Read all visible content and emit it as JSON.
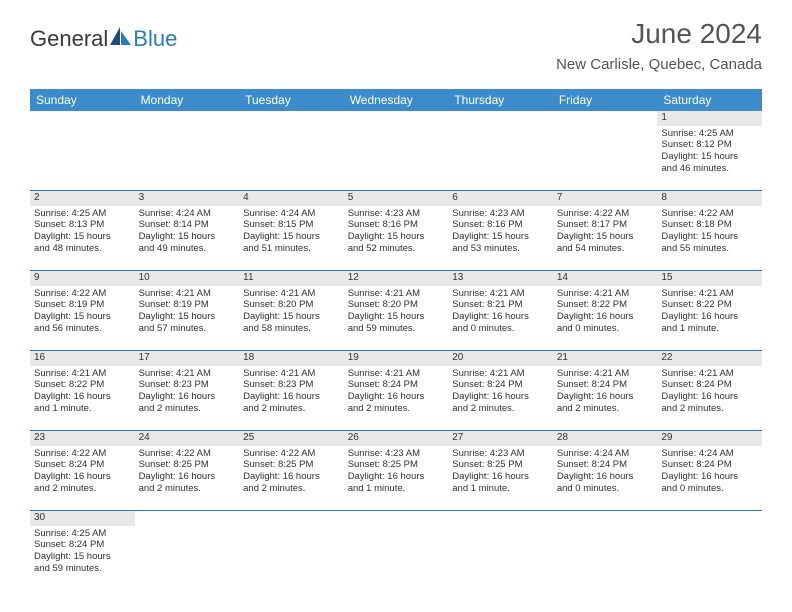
{
  "brand": {
    "part1": "General",
    "part2": "Blue"
  },
  "title": "June 2024",
  "location": "New Carlisle, Quebec, Canada",
  "colors": {
    "header_bg": "#3c8ccb",
    "header_text": "#ffffff",
    "daynum_bg": "#e8e8e8",
    "border": "#2b7bbf",
    "brand_blue": "#2b7bbf",
    "text": "#333333"
  },
  "weekdays": [
    "Sunday",
    "Monday",
    "Tuesday",
    "Wednesday",
    "Thursday",
    "Friday",
    "Saturday"
  ],
  "weeks": [
    [
      null,
      null,
      null,
      null,
      null,
      null,
      {
        "d": "1",
        "sr": "Sunrise: 4:25 AM",
        "ss": "Sunset: 8:12 PM",
        "dl1": "Daylight: 15 hours",
        "dl2": "and 46 minutes."
      }
    ],
    [
      {
        "d": "2",
        "sr": "Sunrise: 4:25 AM",
        "ss": "Sunset: 8:13 PM",
        "dl1": "Daylight: 15 hours",
        "dl2": "and 48 minutes."
      },
      {
        "d": "3",
        "sr": "Sunrise: 4:24 AM",
        "ss": "Sunset: 8:14 PM",
        "dl1": "Daylight: 15 hours",
        "dl2": "and 49 minutes."
      },
      {
        "d": "4",
        "sr": "Sunrise: 4:24 AM",
        "ss": "Sunset: 8:15 PM",
        "dl1": "Daylight: 15 hours",
        "dl2": "and 51 minutes."
      },
      {
        "d": "5",
        "sr": "Sunrise: 4:23 AM",
        "ss": "Sunset: 8:16 PM",
        "dl1": "Daylight: 15 hours",
        "dl2": "and 52 minutes."
      },
      {
        "d": "6",
        "sr": "Sunrise: 4:23 AM",
        "ss": "Sunset: 8:16 PM",
        "dl1": "Daylight: 15 hours",
        "dl2": "and 53 minutes."
      },
      {
        "d": "7",
        "sr": "Sunrise: 4:22 AM",
        "ss": "Sunset: 8:17 PM",
        "dl1": "Daylight: 15 hours",
        "dl2": "and 54 minutes."
      },
      {
        "d": "8",
        "sr": "Sunrise: 4:22 AM",
        "ss": "Sunset: 8:18 PM",
        "dl1": "Daylight: 15 hours",
        "dl2": "and 55 minutes."
      }
    ],
    [
      {
        "d": "9",
        "sr": "Sunrise: 4:22 AM",
        "ss": "Sunset: 8:19 PM",
        "dl1": "Daylight: 15 hours",
        "dl2": "and 56 minutes."
      },
      {
        "d": "10",
        "sr": "Sunrise: 4:21 AM",
        "ss": "Sunset: 8:19 PM",
        "dl1": "Daylight: 15 hours",
        "dl2": "and 57 minutes."
      },
      {
        "d": "11",
        "sr": "Sunrise: 4:21 AM",
        "ss": "Sunset: 8:20 PM",
        "dl1": "Daylight: 15 hours",
        "dl2": "and 58 minutes."
      },
      {
        "d": "12",
        "sr": "Sunrise: 4:21 AM",
        "ss": "Sunset: 8:20 PM",
        "dl1": "Daylight: 15 hours",
        "dl2": "and 59 minutes."
      },
      {
        "d": "13",
        "sr": "Sunrise: 4:21 AM",
        "ss": "Sunset: 8:21 PM",
        "dl1": "Daylight: 16 hours",
        "dl2": "and 0 minutes."
      },
      {
        "d": "14",
        "sr": "Sunrise: 4:21 AM",
        "ss": "Sunset: 8:22 PM",
        "dl1": "Daylight: 16 hours",
        "dl2": "and 0 minutes."
      },
      {
        "d": "15",
        "sr": "Sunrise: 4:21 AM",
        "ss": "Sunset: 8:22 PM",
        "dl1": "Daylight: 16 hours",
        "dl2": "and 1 minute."
      }
    ],
    [
      {
        "d": "16",
        "sr": "Sunrise: 4:21 AM",
        "ss": "Sunset: 8:22 PM",
        "dl1": "Daylight: 16 hours",
        "dl2": "and 1 minute."
      },
      {
        "d": "17",
        "sr": "Sunrise: 4:21 AM",
        "ss": "Sunset: 8:23 PM",
        "dl1": "Daylight: 16 hours",
        "dl2": "and 2 minutes."
      },
      {
        "d": "18",
        "sr": "Sunrise: 4:21 AM",
        "ss": "Sunset: 8:23 PM",
        "dl1": "Daylight: 16 hours",
        "dl2": "and 2 minutes."
      },
      {
        "d": "19",
        "sr": "Sunrise: 4:21 AM",
        "ss": "Sunset: 8:24 PM",
        "dl1": "Daylight: 16 hours",
        "dl2": "and 2 minutes."
      },
      {
        "d": "20",
        "sr": "Sunrise: 4:21 AM",
        "ss": "Sunset: 8:24 PM",
        "dl1": "Daylight: 16 hours",
        "dl2": "and 2 minutes."
      },
      {
        "d": "21",
        "sr": "Sunrise: 4:21 AM",
        "ss": "Sunset: 8:24 PM",
        "dl1": "Daylight: 16 hours",
        "dl2": "and 2 minutes."
      },
      {
        "d": "22",
        "sr": "Sunrise: 4:21 AM",
        "ss": "Sunset: 8:24 PM",
        "dl1": "Daylight: 16 hours",
        "dl2": "and 2 minutes."
      }
    ],
    [
      {
        "d": "23",
        "sr": "Sunrise: 4:22 AM",
        "ss": "Sunset: 8:24 PM",
        "dl1": "Daylight: 16 hours",
        "dl2": "and 2 minutes."
      },
      {
        "d": "24",
        "sr": "Sunrise: 4:22 AM",
        "ss": "Sunset: 8:25 PM",
        "dl1": "Daylight: 16 hours",
        "dl2": "and 2 minutes."
      },
      {
        "d": "25",
        "sr": "Sunrise: 4:22 AM",
        "ss": "Sunset: 8:25 PM",
        "dl1": "Daylight: 16 hours",
        "dl2": "and 2 minutes."
      },
      {
        "d": "26",
        "sr": "Sunrise: 4:23 AM",
        "ss": "Sunset: 8:25 PM",
        "dl1": "Daylight: 16 hours",
        "dl2": "and 1 minute."
      },
      {
        "d": "27",
        "sr": "Sunrise: 4:23 AM",
        "ss": "Sunset: 8:25 PM",
        "dl1": "Daylight: 16 hours",
        "dl2": "and 1 minute."
      },
      {
        "d": "28",
        "sr": "Sunrise: 4:24 AM",
        "ss": "Sunset: 8:24 PM",
        "dl1": "Daylight: 16 hours",
        "dl2": "and 0 minutes."
      },
      {
        "d": "29",
        "sr": "Sunrise: 4:24 AM",
        "ss": "Sunset: 8:24 PM",
        "dl1": "Daylight: 16 hours",
        "dl2": "and 0 minutes."
      }
    ],
    [
      {
        "d": "30",
        "sr": "Sunrise: 4:25 AM",
        "ss": "Sunset: 8:24 PM",
        "dl1": "Daylight: 15 hours",
        "dl2": "and 59 minutes."
      },
      null,
      null,
      null,
      null,
      null,
      null
    ]
  ]
}
